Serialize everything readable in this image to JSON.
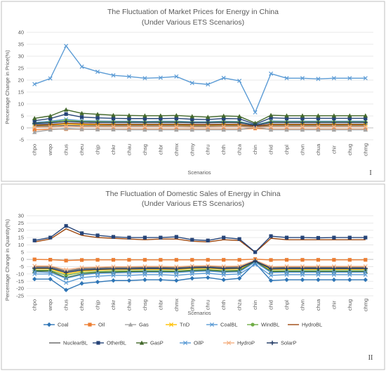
{
  "chart_data": [
    {
      "type": "line",
      "title": "The Fluctuation of Market Prices for Energy in China",
      "subtitle": "(Under Various ETS Scenarios)",
      "xlabel": "Scenarios",
      "ylabel": "Percentage Change in Price(%)",
      "ylim": [
        -5,
        40
      ],
      "ytick_step": 5,
      "grid": true,
      "panel_label": "I",
      "categories": [
        "chpo",
        "wrqo",
        "chus",
        "cheu",
        "chjp",
        "chkr",
        "chau",
        "chsg",
        "chbr",
        "chmx",
        "chmy",
        "chru",
        "chth",
        "chza",
        "chin",
        "chid",
        "chpl",
        "chvn",
        "chua",
        "chir",
        "chug",
        "chmg"
      ],
      "series": [
        {
          "name": "Coal",
          "values": [
            1.5,
            1.6,
            1.8,
            1.7,
            1.6,
            1.6,
            1.6,
            1.6,
            1.6,
            1.6,
            1.5,
            1.5,
            1.6,
            1.5,
            0.8,
            1.6,
            1.6,
            1.6,
            1.6,
            1.6,
            1.6,
            1.6
          ]
        },
        {
          "name": "Oil",
          "values": [
            -0.8,
            -0.6,
            -0.5,
            -0.6,
            -0.6,
            -0.6,
            -0.6,
            -0.6,
            -0.6,
            -0.6,
            -0.6,
            -0.6,
            -0.6,
            -0.6,
            -0.2,
            -0.6,
            -0.6,
            -0.6,
            -0.6,
            -0.6,
            -0.6,
            -0.6
          ]
        },
        {
          "name": "Gas",
          "values": [
            -1.8,
            -0.8,
            -0.3,
            -0.6,
            -0.7,
            -0.7,
            -0.8,
            -0.8,
            -0.8,
            -0.8,
            -0.8,
            -0.8,
            -0.8,
            -0.8,
            0.3,
            -0.8,
            -0.8,
            -0.8,
            -0.8,
            -0.8,
            -0.8,
            -0.8
          ]
        },
        {
          "name": "TnD",
          "values": [
            1.0,
            1.2,
            1.6,
            1.4,
            1.3,
            1.3,
            1.3,
            1.3,
            1.3,
            1.3,
            1.2,
            1.2,
            1.3,
            1.2,
            0.6,
            1.3,
            1.3,
            1.3,
            1.3,
            1.3,
            1.3,
            1.3
          ]
        },
        {
          "name": "CoalBL",
          "values": [
            2.3,
            2.8,
            3.6,
            3.0,
            2.9,
            2.8,
            2.8,
            2.7,
            2.8,
            2.8,
            2.6,
            2.6,
            2.8,
            2.7,
            1.2,
            2.9,
            2.8,
            2.8,
            2.8,
            2.8,
            2.8,
            2.8
          ]
        },
        {
          "name": "WindBL",
          "values": [
            2.0,
            2.4,
            3.2,
            2.7,
            2.6,
            2.5,
            2.5,
            2.4,
            2.5,
            2.5,
            2.3,
            2.3,
            2.5,
            2.4,
            1.0,
            2.6,
            2.5,
            2.5,
            2.5,
            2.5,
            2.5,
            2.5
          ]
        },
        {
          "name": "HydroBL",
          "values": [
            1.2,
            1.4,
            1.9,
            1.7,
            1.6,
            1.5,
            1.5,
            1.5,
            1.5,
            1.5,
            1.4,
            1.4,
            1.5,
            1.5,
            0.7,
            1.5,
            1.5,
            1.5,
            1.5,
            1.5,
            1.5,
            1.5
          ]
        },
        {
          "name": "NuclearBL",
          "values": [
            0.7,
            0.8,
            1.0,
            0.9,
            0.9,
            0.9,
            0.9,
            0.9,
            0.9,
            0.9,
            0.8,
            0.8,
            0.9,
            0.9,
            0.4,
            0.9,
            0.9,
            0.9,
            0.9,
            0.9,
            0.9,
            0.9
          ]
        },
        {
          "name": "OtherBL",
          "values": [
            3.0,
            3.9,
            5.8,
            4.5,
            4.2,
            4.0,
            3.9,
            3.9,
            3.9,
            4.0,
            3.6,
            3.5,
            3.9,
            3.8,
            1.5,
            4.2,
            4.0,
            4.0,
            4.0,
            4.0,
            4.0,
            4.0
          ]
        },
        {
          "name": "GasP",
          "values": [
            4.0,
            5.0,
            7.6,
            6.1,
            5.7,
            5.3,
            5.2,
            5.1,
            5.1,
            5.2,
            4.8,
            4.5,
            5.0,
            4.8,
            2.0,
            5.3,
            5.1,
            5.1,
            5.1,
            5.1,
            5.1,
            5.1
          ]
        },
        {
          "name": "OilP",
          "values": [
            18.3,
            20.7,
            34.3,
            25.6,
            23.5,
            22.0,
            21.5,
            20.8,
            21.0,
            21.5,
            18.8,
            18.2,
            20.9,
            19.7,
            6.5,
            22.7,
            20.8,
            20.8,
            20.5,
            20.8,
            20.8,
            20.8
          ]
        },
        {
          "name": "HydroP",
          "values": [
            0.3,
            0.4,
            0.6,
            0.5,
            0.5,
            0.5,
            0.5,
            0.5,
            0.5,
            0.5,
            0.4,
            0.4,
            0.5,
            0.5,
            0.2,
            0.5,
            0.5,
            0.5,
            0.5,
            0.5,
            0.5,
            0.5
          ]
        },
        {
          "name": "SolarP",
          "values": [
            1.9,
            2.2,
            2.6,
            2.4,
            2.3,
            2.3,
            2.3,
            2.3,
            2.3,
            2.3,
            2.2,
            2.2,
            2.3,
            2.2,
            1.1,
            2.3,
            2.3,
            2.3,
            2.3,
            2.3,
            2.3,
            2.3
          ]
        }
      ]
    },
    {
      "type": "line",
      "title": "The Fluctuation of Domestic Sales of Energy in China",
      "subtitle": "(Under Various ETS Scenarios)",
      "xlabel": "Scenarios",
      "ylabel": "Percentage Change in Quantity(%)",
      "ylim": [
        -25,
        30
      ],
      "ytick_step": 5,
      "grid": true,
      "panel_label": "II",
      "categories": [
        "chpo",
        "wrqo",
        "chus",
        "cheu",
        "chjp",
        "chkr",
        "chau",
        "chsg",
        "chbr",
        "chmx",
        "chmy",
        "chru",
        "chth",
        "chza",
        "chin",
        "chid",
        "chpl",
        "chvn",
        "chua",
        "chir",
        "chug",
        "chmg"
      ],
      "series": [
        {
          "name": "Coal",
          "values": [
            -13.5,
            -13.5,
            -21.0,
            -16.5,
            -15.5,
            -14.5,
            -14.5,
            -14.0,
            -14.0,
            -14.5,
            -13.0,
            -12.5,
            -14.0,
            -13.0,
            -2.5,
            -14.5,
            -14.0,
            -14.0,
            -14.0,
            -14.0,
            -14.0,
            -14.0
          ]
        },
        {
          "name": "Oil",
          "values": [
            0,
            -0.2,
            -0.8,
            -0.4,
            -0.3,
            -0.3,
            -0.3,
            -0.3,
            -0.3,
            -0.3,
            -0.3,
            -0.3,
            -0.3,
            -0.3,
            0.2,
            -0.4,
            -0.3,
            -0.3,
            -0.3,
            -0.3,
            -0.3,
            -0.3
          ]
        },
        {
          "name": "Gas",
          "values": [
            -5.5,
            -5.5,
            -8.5,
            -6.8,
            -6.4,
            -6.0,
            -6.0,
            -5.8,
            -5.8,
            -6.0,
            -5.3,
            -5.1,
            -5.8,
            -5.5,
            -1.0,
            -6.0,
            -5.8,
            -5.8,
            -5.8,
            -5.8,
            -5.8,
            -5.8
          ]
        },
        {
          "name": "TnD",
          "values": [
            -6.5,
            -6.5,
            -10.0,
            -8.0,
            -7.5,
            -7.0,
            -7.0,
            -6.8,
            -6.8,
            -7.0,
            -6.3,
            -6.1,
            -6.8,
            -6.5,
            -1.3,
            -7.0,
            -6.8,
            -6.8,
            -6.8,
            -6.8,
            -6.8,
            -6.8
          ]
        },
        {
          "name": "CoalBL",
          "values": [
            -10.0,
            -10.0,
            -16.0,
            -12.5,
            -11.5,
            -11.0,
            -11.0,
            -10.5,
            -10.5,
            -11.0,
            -10.0,
            -9.5,
            -10.5,
            -10.0,
            -3.5,
            -11.0,
            -10.5,
            -10.5,
            -10.5,
            -10.5,
            -10.5,
            -10.5
          ]
        },
        {
          "name": "WindBL",
          "values": [
            -7.5,
            -7.5,
            -11.0,
            -9.0,
            -8.5,
            -8.0,
            -8.0,
            -7.8,
            -7.8,
            -8.0,
            -7.3,
            -7.0,
            -7.8,
            -7.5,
            -1.5,
            -8.0,
            -7.8,
            -7.8,
            -7.8,
            -7.8,
            -7.8,
            -7.8
          ]
        },
        {
          "name": "HydroBL",
          "values": [
            12.0,
            14.0,
            21.0,
            16.5,
            15.0,
            14.5,
            14.0,
            13.5,
            14.0,
            14.0,
            12.5,
            12.0,
            13.5,
            13.0,
            4.8,
            14.5,
            13.5,
            13.5,
            13.5,
            13.5,
            13.5,
            13.5
          ]
        },
        {
          "name": "NuclearBL",
          "values": [
            -5.0,
            -5.0,
            -8.0,
            -6.3,
            -6.0,
            -5.6,
            -5.6,
            -5.4,
            -5.4,
            -5.6,
            -5.0,
            -4.8,
            -5.4,
            -5.1,
            -0.8,
            -5.6,
            -5.4,
            -5.4,
            -5.4,
            -5.4,
            -5.4,
            -5.4
          ]
        },
        {
          "name": "OtherBL",
          "values": [
            13.0,
            15.0,
            23.0,
            18.0,
            16.5,
            15.5,
            15.0,
            15.0,
            15.0,
            15.5,
            13.5,
            13.0,
            15.0,
            14.0,
            5.0,
            16.0,
            15.0,
            15.0,
            14.8,
            15.0,
            15.0,
            15.0
          ]
        },
        {
          "name": "GasP",
          "values": [
            -8.0,
            -8.0,
            -12.5,
            -10.0,
            -9.0,
            -8.8,
            -8.5,
            -8.3,
            -8.3,
            -8.5,
            -7.8,
            -7.5,
            -8.3,
            -8.0,
            -1.2,
            -8.5,
            -8.3,
            -8.3,
            -8.3,
            -8.3,
            -8.3,
            -8.3
          ]
        },
        {
          "name": "OilP",
          "values": [
            -8.5,
            -9.0,
            -13.0,
            -10.5,
            -9.5,
            -9.3,
            -9.0,
            -8.8,
            -8.8,
            -9.0,
            -8.3,
            -8.0,
            -8.8,
            -8.5,
            -1.8,
            -9.0,
            -8.8,
            -8.8,
            -8.8,
            -8.8,
            -8.8,
            -8.8
          ]
        },
        {
          "name": "HydroP",
          "values": [
            -4.5,
            -4.5,
            -7.0,
            -5.6,
            -5.3,
            -5.0,
            -5.0,
            -4.8,
            -4.8,
            -5.0,
            -4.5,
            -4.3,
            -4.8,
            -4.6,
            -0.5,
            -5.0,
            -4.8,
            -4.8,
            -4.8,
            -4.8,
            -4.8,
            -4.8
          ]
        },
        {
          "name": "SolarP",
          "values": [
            -6.0,
            -6.0,
            -9.0,
            -7.3,
            -6.9,
            -6.5,
            -6.5,
            -6.3,
            -6.3,
            -6.5,
            -5.8,
            -5.6,
            -6.3,
            -6.0,
            -1.0,
            -6.5,
            -6.3,
            -6.3,
            -6.3,
            -6.3,
            -6.3,
            -6.3
          ]
        }
      ]
    }
  ],
  "styles": {
    "Coal": {
      "color": "#2e75b6",
      "marker": "diamond"
    },
    "Oil": {
      "color": "#ed7d31",
      "marker": "square"
    },
    "Gas": {
      "color": "#a5a5a5",
      "marker": "triangle"
    },
    "TnD": {
      "color": "#ffc000",
      "marker": "x"
    },
    "CoalBL": {
      "color": "#5b9bd5",
      "marker": "x"
    },
    "WindBL": {
      "color": "#70ad47",
      "marker": "circle"
    },
    "HydroBL": {
      "color": "#9e480e",
      "marker": "none"
    },
    "NuclearBL": {
      "color": "#636363",
      "marker": "none"
    },
    "OtherBL": {
      "color": "#264478",
      "marker": "square"
    },
    "GasP": {
      "color": "#43682b",
      "marker": "triangle"
    },
    "OilP": {
      "color": "#5b9bd5",
      "marker": "x"
    },
    "HydroP": {
      "color": "#f4b183",
      "marker": "x"
    },
    "SolarP": {
      "color": "#203864",
      "marker": "plus"
    }
  },
  "legend": {
    "placement": "bottom",
    "row1": [
      "Coal",
      "Oil",
      "Gas",
      "TnD",
      "CoalBL",
      "WindBL",
      "HydroBL"
    ],
    "row2": [
      "NuclearBL",
      "OtherBL",
      "GasP",
      "OilP",
      "HydroP",
      "SolarP"
    ]
  }
}
